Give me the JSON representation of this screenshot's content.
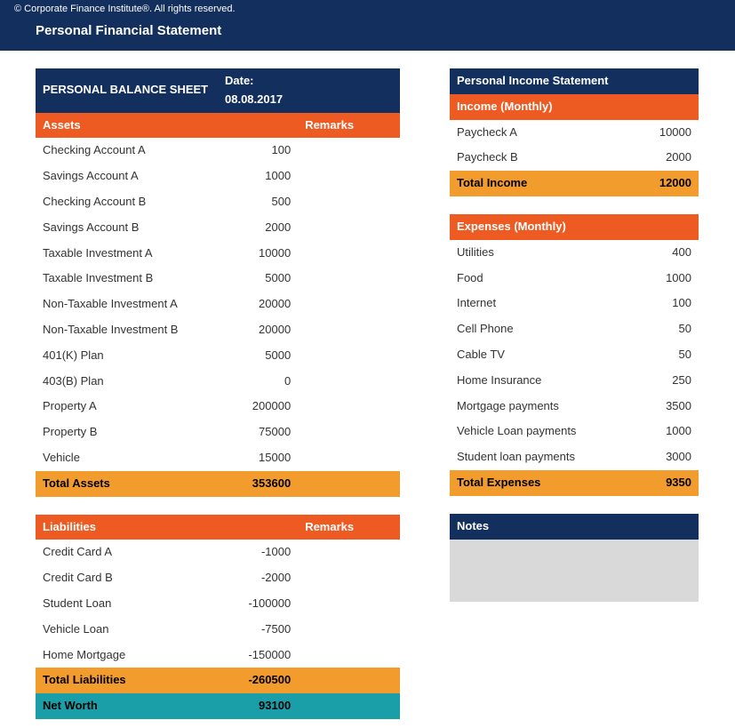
{
  "colors": {
    "navy": "#132f5e",
    "orange_header": "#ee5b22",
    "orange_total": "#f39c2e",
    "teal": "#1a9fa8",
    "notes_gray": "#d9d9d9"
  },
  "copyright": "© Corporate Finance Institute®. All rights reserved.",
  "page_title": "Personal Financial Statement",
  "balance_sheet": {
    "title": "PERSONAL BALANCE SHEET",
    "date_label": "Date: 08.08.2017",
    "assets_header": "Assets",
    "remarks_header": "Remarks",
    "assets": [
      {
        "label": "Checking Account A",
        "value": "100"
      },
      {
        "label": "Savings Account A",
        "value": "1000"
      },
      {
        "label": "Checking Account B",
        "value": "500"
      },
      {
        "label": "Savings Account B",
        "value": "2000"
      },
      {
        "label": "Taxable Investment A",
        "value": "10000"
      },
      {
        "label": "Taxable Investment B",
        "value": "5000"
      },
      {
        "label": "Non-Taxable Investment A",
        "value": "20000"
      },
      {
        "label": "Non-Taxable Investment B",
        "value": "20000"
      },
      {
        "label": "401(K) Plan",
        "value": "5000"
      },
      {
        "label": "403(B) Plan",
        "value": "0"
      },
      {
        "label": "Property A",
        "value": "200000"
      },
      {
        "label": "Property B",
        "value": "75000"
      },
      {
        "label": "Vehicle",
        "value": "15000"
      }
    ],
    "total_assets_label": "Total Assets",
    "total_assets_value": "353600",
    "liabilities_header": "Liabilities",
    "liabilities": [
      {
        "label": "Credit Card A",
        "value": "-1000"
      },
      {
        "label": "Credit Card B",
        "value": "-2000"
      },
      {
        "label": "Student Loan",
        "value": "-100000"
      },
      {
        "label": "Vehicle Loan",
        "value": "-7500"
      },
      {
        "label": "Home Mortgage",
        "value": "-150000"
      }
    ],
    "total_liabilities_label": "Total Liabilities",
    "total_liabilities_value": "-260500",
    "net_worth_label": "Net Worth",
    "net_worth_value": "93100"
  },
  "income_statement": {
    "title": "Personal Income Statement",
    "income_header": "Income (Monthly)",
    "income": [
      {
        "label": "Paycheck A",
        "value": "10000"
      },
      {
        "label": "Paycheck B",
        "value": "2000"
      }
    ],
    "total_income_label": "Total Income",
    "total_income_value": "12000",
    "expenses_header": "Expenses (Monthly)",
    "expenses": [
      {
        "label": "Utilities",
        "value": "400"
      },
      {
        "label": "Food",
        "value": "1000"
      },
      {
        "label": "Internet",
        "value": "100"
      },
      {
        "label": "Cell Phone",
        "value": "50"
      },
      {
        "label": "Cable TV",
        "value": "50"
      },
      {
        "label": "Home Insurance",
        "value": "250"
      },
      {
        "label": "Mortgage payments",
        "value": "3500"
      },
      {
        "label": "Vehicle Loan payments",
        "value": "1000"
      },
      {
        "label": "Student loan payments",
        "value": "3000"
      }
    ],
    "total_expenses_label": "Total Expenses",
    "total_expenses_value": "9350"
  },
  "notes_header": "Notes"
}
